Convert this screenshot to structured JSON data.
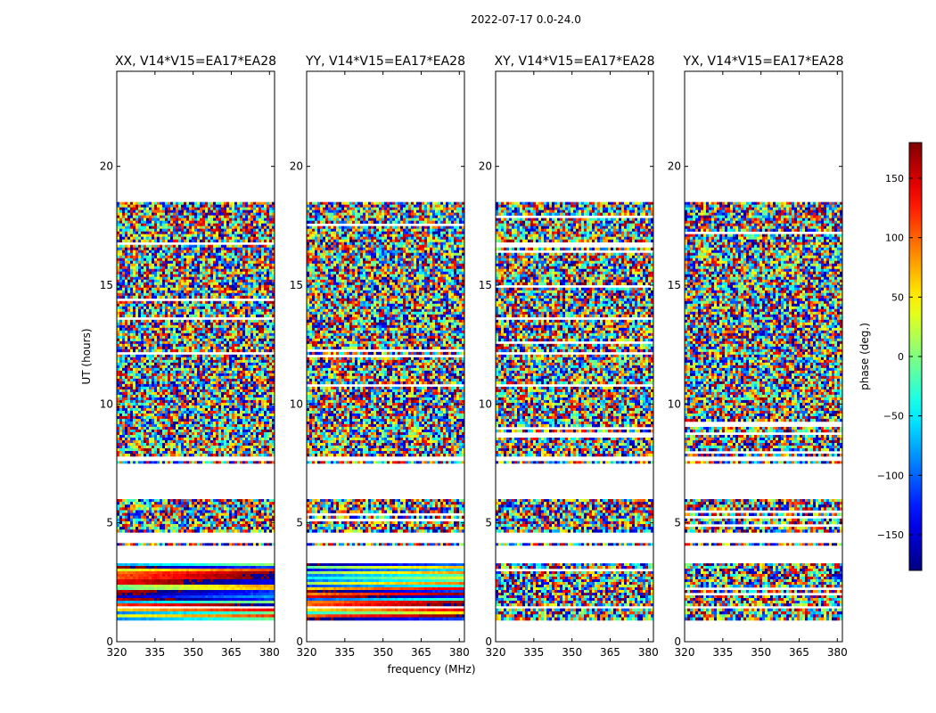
{
  "figure": {
    "suptitle": "2022-07-17 0.0-24.0",
    "ylabel": "UT (hours)",
    "xlabel": "frequency (MHz)"
  },
  "chart_data": [
    {
      "type": "heatmap",
      "title": "XX, V14*V15=EA17*EA28",
      "xlim": [
        320,
        382
      ],
      "ylim": [
        0,
        24
      ],
      "xticks": [
        320,
        335,
        350,
        365,
        380
      ],
      "yticks": [
        0,
        5,
        10,
        15,
        20
      ],
      "data_time_ranges_hours": [
        [
          0.9,
          1.4
        ],
        [
          1.5,
          3.3
        ],
        [
          4.05,
          4.15
        ],
        [
          4.6,
          6.0
        ],
        [
          7.5,
          7.6
        ],
        [
          7.8,
          18.5
        ]
      ],
      "blank_gaps_hours": [
        [
          1.4,
          1.5
        ],
        [
          3.3,
          4.05
        ],
        [
          4.15,
          4.6
        ],
        [
          6.0,
          7.5
        ],
        [
          18.5,
          24.0
        ]
      ],
      "pattern": "smooth horizontal phase bands below ~3.3 h, noisy phases above"
    },
    {
      "type": "heatmap",
      "title": "YY, V14*V15=EA17*EA28",
      "xlim": [
        320,
        382
      ],
      "ylim": [
        0,
        24
      ],
      "xticks": [
        320,
        335,
        350,
        365,
        380
      ],
      "yticks": [
        0,
        5,
        10,
        15,
        20
      ],
      "data_time_ranges_hours": [
        [
          0.9,
          1.4
        ],
        [
          1.5,
          3.3
        ],
        [
          4.05,
          4.15
        ],
        [
          4.6,
          6.0
        ],
        [
          7.5,
          7.6
        ],
        [
          7.8,
          18.5
        ]
      ],
      "blank_gaps_hours": [
        [
          1.4,
          1.5
        ],
        [
          3.3,
          4.05
        ],
        [
          4.15,
          4.6
        ],
        [
          6.0,
          7.5
        ],
        [
          18.5,
          24.0
        ]
      ],
      "pattern": "smooth horizontal phase bands below ~3.3 h, noisy phases above"
    },
    {
      "type": "heatmap",
      "title": "XY, V14*V15=EA17*EA28",
      "xlim": [
        320,
        382
      ],
      "ylim": [
        0,
        24
      ],
      "xticks": [
        320,
        335,
        350,
        365,
        380
      ],
      "yticks": [
        0,
        5,
        10,
        15,
        20
      ],
      "data_time_ranges_hours": [
        [
          0.9,
          1.4
        ],
        [
          1.5,
          3.3
        ],
        [
          4.05,
          4.15
        ],
        [
          4.6,
          6.0
        ],
        [
          7.5,
          7.6
        ],
        [
          7.8,
          18.5
        ]
      ],
      "blank_gaps_hours": [
        [
          1.4,
          1.5
        ],
        [
          3.3,
          4.05
        ],
        [
          4.15,
          4.6
        ],
        [
          6.0,
          7.5
        ],
        [
          18.5,
          24.0
        ]
      ],
      "pattern": "noisy phases throughout"
    },
    {
      "type": "heatmap",
      "title": "YX, V14*V15=EA17*EA28",
      "xlim": [
        320,
        382
      ],
      "ylim": [
        0,
        24
      ],
      "xticks": [
        320,
        335,
        350,
        365,
        380
      ],
      "yticks": [
        0,
        5,
        10,
        15,
        20
      ],
      "data_time_ranges_hours": [
        [
          0.9,
          1.4
        ],
        [
          1.5,
          3.3
        ],
        [
          4.05,
          4.15
        ],
        [
          4.6,
          6.0
        ],
        [
          7.5,
          7.6
        ],
        [
          7.8,
          18.5
        ]
      ],
      "blank_gaps_hours": [
        [
          1.4,
          1.5
        ],
        [
          3.3,
          4.05
        ],
        [
          4.15,
          4.6
        ],
        [
          6.0,
          7.5
        ],
        [
          18.5,
          24.0
        ]
      ],
      "pattern": "noisy phases throughout"
    }
  ],
  "colorbar": {
    "label": "phase (deg.)",
    "range": [
      -180,
      180
    ],
    "ticks": [
      -150,
      -100,
      -50,
      0,
      50,
      100,
      150
    ],
    "tick_labels": [
      "−150",
      "−100",
      "−50",
      "0",
      "50",
      "100",
      "150"
    ],
    "colormap": "jet"
  }
}
